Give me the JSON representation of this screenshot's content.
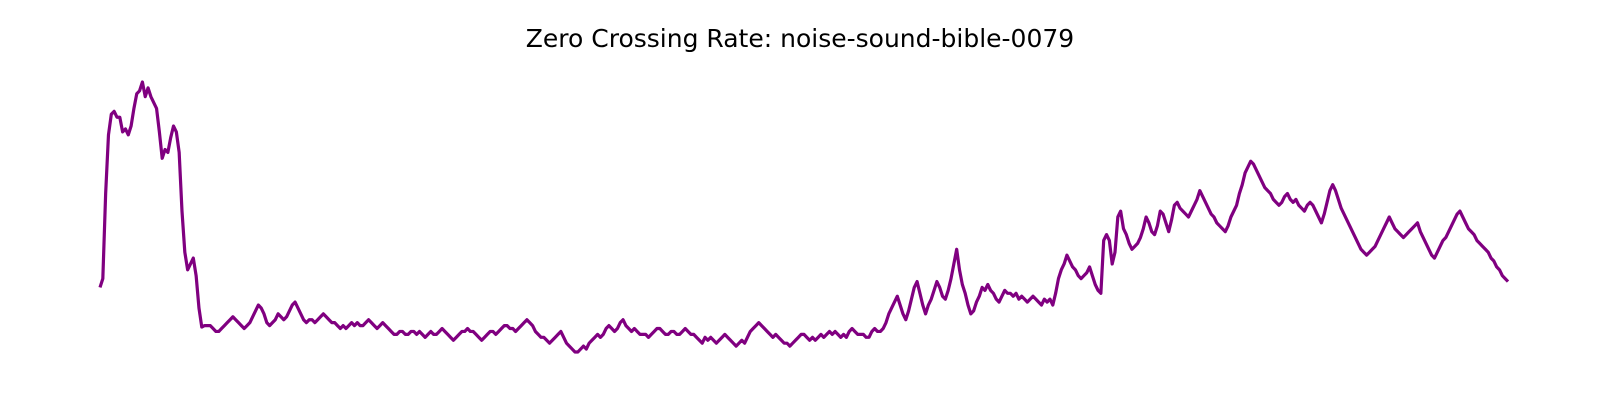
{
  "chart_data": {
    "type": "line",
    "title": "Zero Crossing Rate: noise-sound-bible-0079",
    "xlabel": "",
    "ylabel": "",
    "axes_visible": false,
    "grid": false,
    "line_color": "#800080",
    "series": [
      {
        "values": [
          0.14,
          0.17,
          0.46,
          0.66,
          0.73,
          0.74,
          0.72,
          0.72,
          0.67,
          0.68,
          0.66,
          0.69,
          0.75,
          0.8,
          0.81,
          0.84,
          0.79,
          0.82,
          0.79,
          0.77,
          0.75,
          0.67,
          0.58,
          0.61,
          0.6,
          0.65,
          0.69,
          0.67,
          0.6,
          0.4,
          0.26,
          0.2,
          0.22,
          0.24,
          0.18,
          0.07,
          0.005,
          0.01,
          0.01,
          0.01,
          0.0,
          -0.01,
          -0.01,
          0.0,
          0.01,
          0.02,
          0.03,
          0.04,
          0.03,
          0.02,
          0.01,
          0.0,
          0.01,
          0.02,
          0.04,
          0.06,
          0.08,
          0.07,
          0.05,
          0.02,
          0.01,
          0.02,
          0.03,
          0.05,
          0.04,
          0.03,
          0.04,
          0.06,
          0.08,
          0.09,
          0.07,
          0.05,
          0.03,
          0.02,
          0.03,
          0.03,
          0.02,
          0.03,
          0.04,
          0.05,
          0.04,
          0.03,
          0.02,
          0.02,
          0.01,
          0.0,
          0.01,
          0.0,
          0.01,
          0.02,
          0.01,
          0.02,
          0.01,
          0.01,
          0.02,
          0.03,
          0.02,
          0.01,
          0.0,
          0.01,
          0.02,
          0.01,
          0.0,
          -0.01,
          -0.02,
          -0.02,
          -0.01,
          -0.01,
          -0.02,
          -0.02,
          -0.01,
          -0.01,
          -0.02,
          -0.01,
          -0.02,
          -0.03,
          -0.02,
          -0.01,
          -0.02,
          -0.02,
          -0.01,
          0.0,
          -0.01,
          -0.02,
          -0.03,
          -0.04,
          -0.03,
          -0.02,
          -0.01,
          -0.01,
          0.0,
          -0.01,
          -0.01,
          -0.02,
          -0.03,
          -0.04,
          -0.03,
          -0.02,
          -0.01,
          -0.01,
          -0.02,
          -0.01,
          0.0,
          0.01,
          0.01,
          0.0,
          0.0,
          -0.01,
          0.0,
          0.01,
          0.02,
          0.03,
          0.02,
          0.01,
          -0.01,
          -0.02,
          -0.03,
          -0.03,
          -0.04,
          -0.05,
          -0.04,
          -0.03,
          -0.02,
          -0.01,
          -0.03,
          -0.05,
          -0.06,
          -0.07,
          -0.08,
          -0.08,
          -0.07,
          -0.06,
          -0.07,
          -0.05,
          -0.04,
          -0.03,
          -0.02,
          -0.03,
          -0.02,
          0.0,
          0.01,
          0.0,
          -0.01,
          0.0,
          0.02,
          0.03,
          0.01,
          0.0,
          -0.01,
          0.0,
          -0.01,
          -0.02,
          -0.02,
          -0.02,
          -0.03,
          -0.02,
          -0.01,
          0.0,
          0.0,
          -0.01,
          -0.02,
          -0.02,
          -0.01,
          -0.01,
          -0.02,
          -0.02,
          -0.01,
          0.0,
          -0.01,
          -0.02,
          -0.02,
          -0.03,
          -0.04,
          -0.05,
          -0.03,
          -0.04,
          -0.03,
          -0.04,
          -0.05,
          -0.04,
          -0.03,
          -0.02,
          -0.03,
          -0.04,
          -0.05,
          -0.06,
          -0.05,
          -0.04,
          -0.05,
          -0.03,
          -0.01,
          0.0,
          0.01,
          0.02,
          0.01,
          0.0,
          -0.01,
          -0.02,
          -0.03,
          -0.02,
          -0.03,
          -0.04,
          -0.05,
          -0.05,
          -0.06,
          -0.05,
          -0.04,
          -0.03,
          -0.02,
          -0.02,
          -0.03,
          -0.04,
          -0.03,
          -0.04,
          -0.03,
          -0.02,
          -0.03,
          -0.02,
          -0.01,
          -0.02,
          -0.01,
          -0.02,
          -0.03,
          -0.02,
          -0.03,
          -0.01,
          0.0,
          -0.01,
          -0.02,
          -0.02,
          -0.02,
          -0.03,
          -0.03,
          -0.01,
          0.0,
          -0.01,
          -0.01,
          0.0,
          0.02,
          0.05,
          0.07,
          0.09,
          0.11,
          0.08,
          0.05,
          0.03,
          0.06,
          0.1,
          0.14,
          0.16,
          0.12,
          0.08,
          0.05,
          0.08,
          0.1,
          0.13,
          0.16,
          0.14,
          0.11,
          0.1,
          0.13,
          0.17,
          0.22,
          0.27,
          0.2,
          0.15,
          0.12,
          0.08,
          0.05,
          0.06,
          0.09,
          0.11,
          0.14,
          0.13,
          0.15,
          0.13,
          0.12,
          0.1,
          0.09,
          0.11,
          0.13,
          0.12,
          0.12,
          0.11,
          0.12,
          0.1,
          0.11,
          0.1,
          0.09,
          0.1,
          0.11,
          0.1,
          0.09,
          0.08,
          0.1,
          0.09,
          0.1,
          0.08,
          0.12,
          0.17,
          0.2,
          0.22,
          0.25,
          0.23,
          0.21,
          0.2,
          0.18,
          0.17,
          0.18,
          0.19,
          0.21,
          0.18,
          0.15,
          0.13,
          0.12,
          0.3,
          0.32,
          0.3,
          0.22,
          0.26,
          0.38,
          0.4,
          0.34,
          0.32,
          0.29,
          0.27,
          0.28,
          0.29,
          0.31,
          0.34,
          0.38,
          0.36,
          0.33,
          0.32,
          0.35,
          0.4,
          0.39,
          0.36,
          0.33,
          0.37,
          0.42,
          0.43,
          0.41,
          0.4,
          0.39,
          0.38,
          0.4,
          0.42,
          0.44,
          0.47,
          0.45,
          0.43,
          0.41,
          0.39,
          0.38,
          0.36,
          0.35,
          0.34,
          0.33,
          0.35,
          0.38,
          0.4,
          0.42,
          0.46,
          0.49,
          0.53,
          0.55,
          0.57,
          0.56,
          0.54,
          0.52,
          0.5,
          0.48,
          0.47,
          0.46,
          0.44,
          0.43,
          0.42,
          0.43,
          0.45,
          0.46,
          0.44,
          0.43,
          0.44,
          0.42,
          0.41,
          0.4,
          0.42,
          0.43,
          0.42,
          0.4,
          0.38,
          0.36,
          0.39,
          0.43,
          0.47,
          0.49,
          0.47,
          0.44,
          0.41,
          0.39,
          0.37,
          0.35,
          0.33,
          0.31,
          0.29,
          0.27,
          0.26,
          0.25,
          0.26,
          0.27,
          0.28,
          0.3,
          0.32,
          0.34,
          0.36,
          0.38,
          0.36,
          0.34,
          0.33,
          0.32,
          0.31,
          0.32,
          0.33,
          0.34,
          0.35,
          0.36,
          0.33,
          0.31,
          0.29,
          0.27,
          0.25,
          0.24,
          0.26,
          0.28,
          0.3,
          0.31,
          0.33,
          0.35,
          0.37,
          0.39,
          0.4,
          0.38,
          0.36,
          0.34,
          0.33,
          0.32,
          0.3,
          0.29,
          0.28,
          0.27,
          0.26,
          0.24,
          0.23,
          0.21,
          0.2,
          0.18,
          0.17,
          0.16
        ]
      }
    ]
  }
}
